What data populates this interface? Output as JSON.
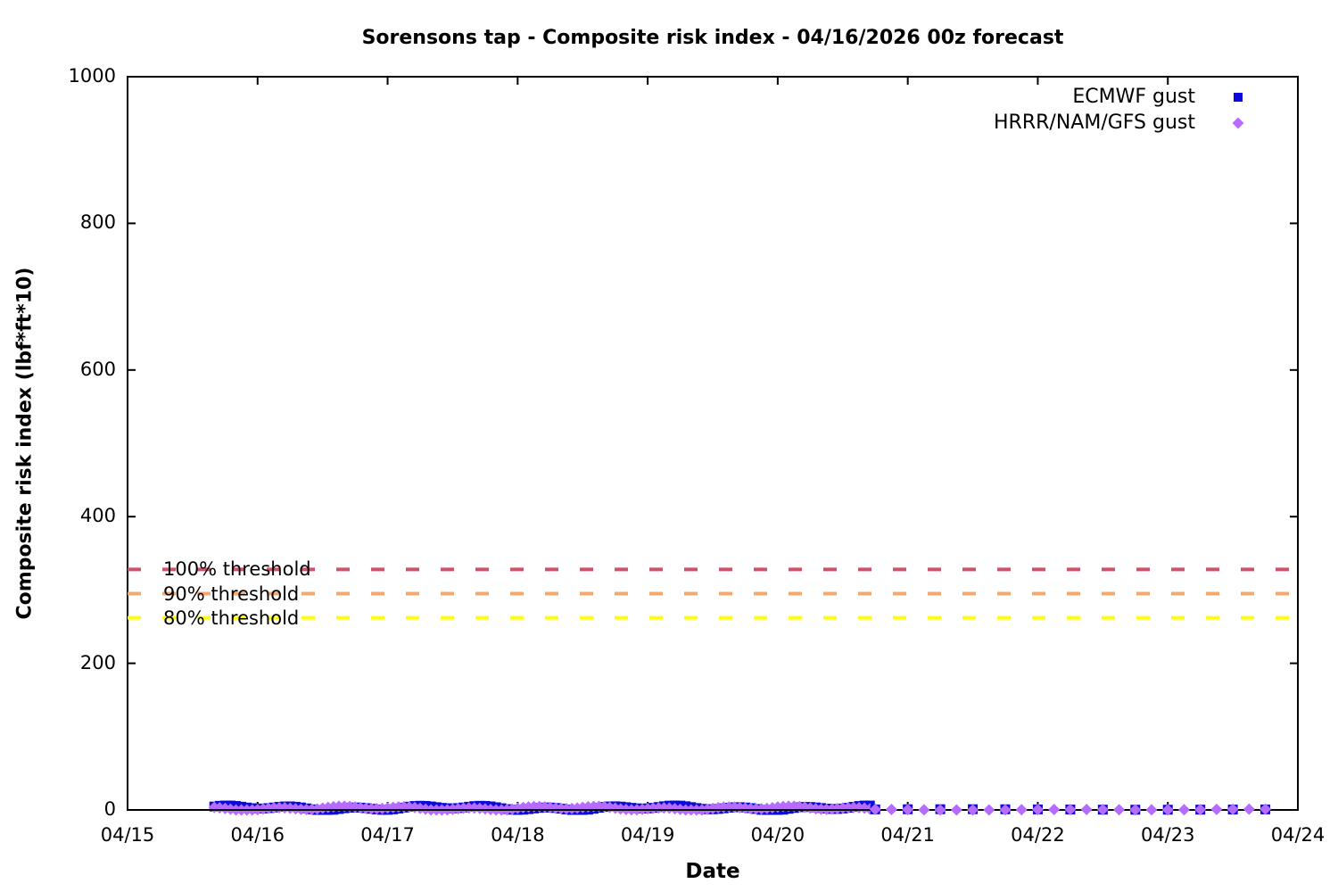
{
  "chart_data": {
    "type": "scatter",
    "title": "Sorensons tap - Composite risk index - 04/16/2026 00z forecast",
    "xlabel": "Date",
    "ylabel": "Composite risk index (lbf*ft*10)",
    "x_tick_labels": [
      "04/15",
      "04/16",
      "04/17",
      "04/18",
      "04/19",
      "04/20",
      "04/21",
      "04/22",
      "04/23",
      "04/24"
    ],
    "y_tick_labels": [
      "0",
      "200",
      "400",
      "600",
      "800",
      "1000"
    ],
    "ylim": [
      0,
      1000
    ],
    "x_span_days": 9,
    "grid": "off",
    "legend_position": "top-right-inside",
    "background_color": "#ffffff",
    "border_color": "#000000",
    "thresholds": [
      {
        "label": "100% threshold",
        "value": 328,
        "color": "#d25069",
        "style": "dashed"
      },
      {
        "label": "90% threshold",
        "value": 295,
        "color": "#f5a86e",
        "style": "dashed"
      },
      {
        "label": "80% threshold",
        "value": 262,
        "color": "#ffff00",
        "style": "dashed"
      }
    ],
    "series": [
      {
        "name": "ECMWF gust",
        "marker": "square",
        "color": "#0a0ad8",
        "segments": [
          {
            "start_day": 0.667,
            "end_day": 5.708,
            "interval_hours": 1,
            "value_min": 0,
            "value_max": 6
          },
          {
            "start_day": 5.75,
            "end_day": 8.75,
            "interval_hours": 6,
            "value_min": 0,
            "value_max": 1
          }
        ]
      },
      {
        "name": "HRRR/NAM/GFS gust",
        "marker": "diamond",
        "color": "#b66dff",
        "segments": [
          {
            "start_day": 0.667,
            "end_day": 5.708,
            "interval_hours": 1,
            "value_min": 0,
            "value_max": 5
          },
          {
            "start_day": 5.75,
            "end_day": 8.75,
            "interval_hours": 3,
            "value_min": 0,
            "value_max": 1
          }
        ]
      }
    ]
  }
}
